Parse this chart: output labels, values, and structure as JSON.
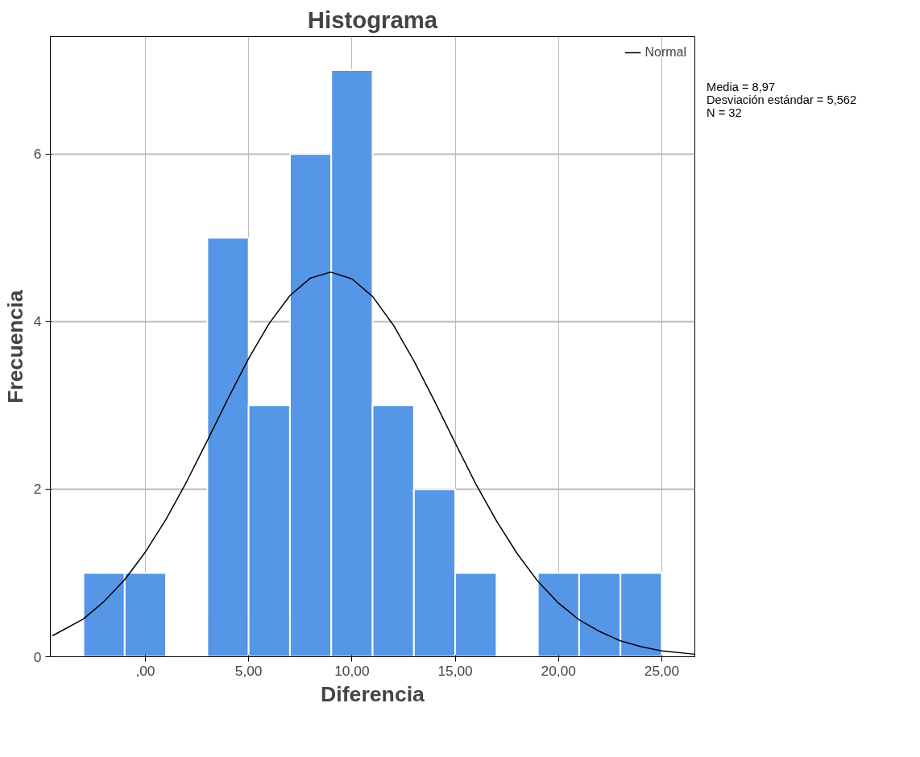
{
  "chart_data": {
    "type": "histogram",
    "title": "Histograma",
    "xlabel": "Diferencia",
    "ylabel": "Frecuencia",
    "bins": [
      -3,
      -1,
      1,
      3,
      5,
      7,
      9,
      11,
      13,
      15,
      17,
      19,
      21,
      23,
      25
    ],
    "values": [
      1,
      1,
      0,
      5,
      3,
      6,
      7,
      3,
      2,
      1,
      0,
      1,
      1,
      1
    ],
    "color": "#5596e6",
    "series": [
      {
        "name": "Normal",
        "type": "line",
        "color": "#000000",
        "x": [
          -4.5,
          -3,
          -2,
          -1,
          0,
          1,
          2,
          3,
          4,
          5,
          6,
          7,
          8,
          8.97,
          10,
          11,
          12,
          13,
          14,
          15,
          16,
          17,
          18,
          19,
          20,
          21,
          22,
          23,
          24,
          25,
          26.6
        ],
        "values": [
          0.25,
          0.45,
          0.66,
          0.92,
          1.25,
          1.64,
          2.09,
          2.58,
          3.08,
          3.56,
          3.98,
          4.31,
          4.52,
          4.59,
          4.51,
          4.3,
          3.96,
          3.53,
          3.05,
          2.55,
          2.06,
          1.62,
          1.23,
          0.9,
          0.64,
          0.44,
          0.3,
          0.19,
          0.12,
          0.07,
          0.03
        ]
      }
    ],
    "xlim": [
      -4.6,
      26.6
    ],
    "ylim": [
      0,
      7.4
    ],
    "xticks": [
      {
        "value": 0,
        "label": ",00"
      },
      {
        "value": 5,
        "label": "5,00"
      },
      {
        "value": 10,
        "label": "10,00"
      },
      {
        "value": 15,
        "label": "15,00"
      },
      {
        "value": 20,
        "label": "20,00"
      },
      {
        "value": 25,
        "label": "25,00"
      }
    ],
    "yticks": [
      0,
      2,
      4,
      6
    ],
    "grid": true,
    "legend": "top right",
    "annotations": [
      "Media = 8,97",
      "Desviación estándar = 5,562",
      "N = 32"
    ]
  }
}
